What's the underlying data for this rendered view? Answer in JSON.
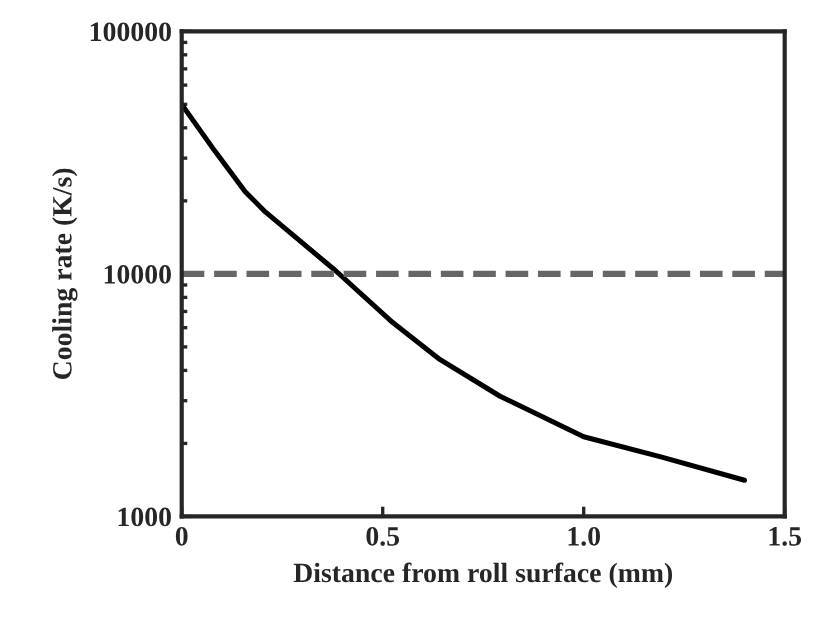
{
  "chart_data": {
    "type": "line",
    "xlabel": "Distance from roll surface (mm)",
    "ylabel": "Cooling rate (K/s)",
    "x": [
      0,
      0.083,
      0.158,
      0.208,
      0.383,
      0.525,
      0.642,
      0.792,
      1.0,
      1.192,
      1.4
    ],
    "series": [
      {
        "color": "#000000",
        "values": [
          50000,
          32000,
          21800,
          18000,
          10300,
          6300,
          4440,
          3130,
          2130,
          1760,
          1410
        ]
      }
    ],
    "log": "y",
    "xlim": [
      0,
      1.5
    ],
    "xticks": [
      0,
      0.5,
      {
        "value": 1,
        "label": "1.0"
      },
      1.5
    ],
    "ylim": [
      1000,
      100000
    ],
    "yticks": [
      1000,
      10000,
      100000
    ],
    "ref_lines": [
      {
        "axis": "y",
        "value": 10000,
        "color": "#666666",
        "line_style": "dashed"
      }
    ],
    "grid": false,
    "legend": false,
    "marker": "none",
    "line_style": "solid"
  }
}
